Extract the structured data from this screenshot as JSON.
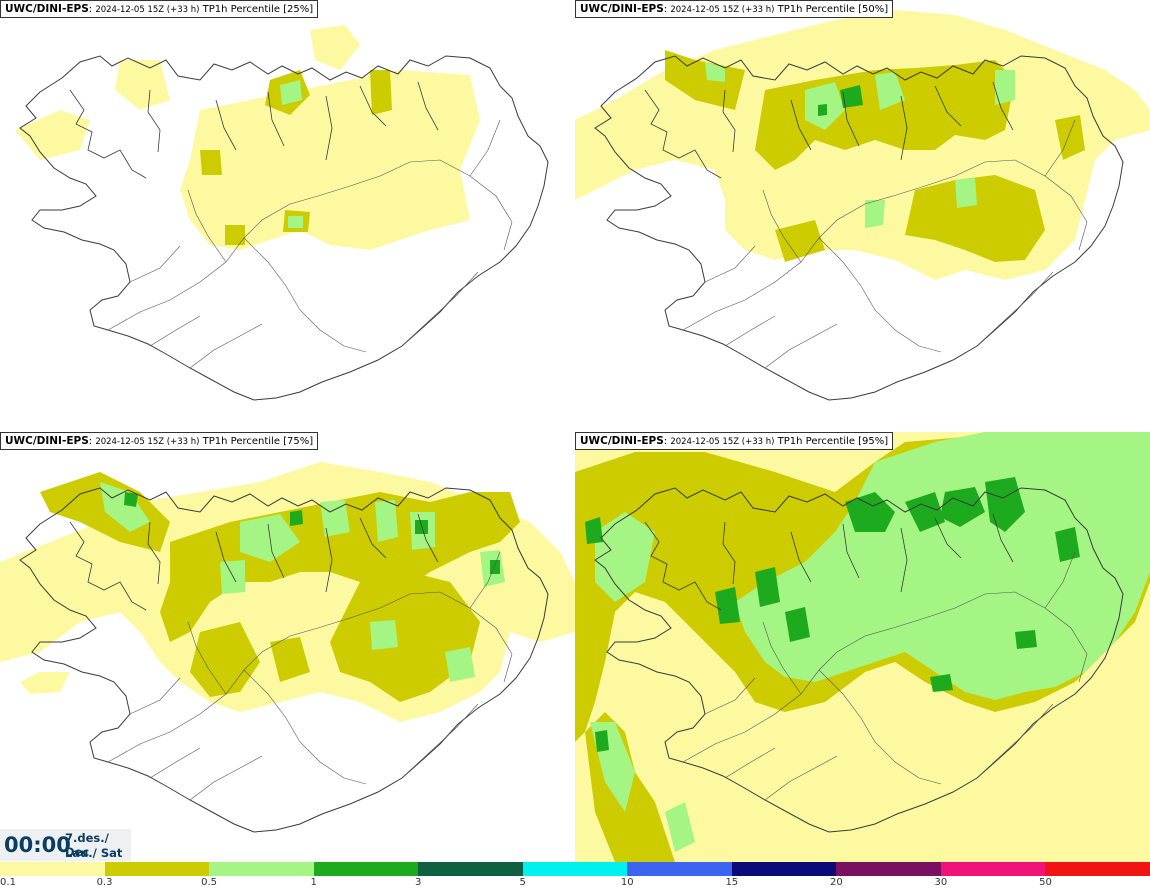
{
  "panels": [
    {
      "source": "UWC/DINI-EPS",
      "run": "2024-12-05 15Z (+33 h)",
      "product": "TP1h Percentile [25%]"
    },
    {
      "source": "UWC/DINI-EPS",
      "run": "2024-12-05 15Z (+33 h)",
      "product": "TP1h Percentile [50%]"
    },
    {
      "source": "UWC/DINI-EPS",
      "run": "2024-12-05 15Z (+33 h)",
      "product": "TP1h Percentile [75%]"
    },
    {
      "source": "UWC/DINI-EPS",
      "run": "2024-12-05 15Z (+33 h)",
      "product": "TP1h Percentile [95%]"
    }
  ],
  "valid_time": {
    "clock": "00:00",
    "date": "7.des./ Dec",
    "day": "Lau./ Sat"
  },
  "legend": {
    "colors": [
      "#fdf9a0",
      "#cccc00",
      "#a4f584",
      "#1eaa1e",
      "#0f6040",
      "#00f0f0",
      "#3c64f0",
      "#0a0a78",
      "#7a1060",
      "#f0147a",
      "#f01414"
    ],
    "ticks": [
      "0.1",
      "0.3",
      "0.5",
      "1",
      "3",
      "5",
      "10",
      "15",
      "20",
      "30",
      "50"
    ]
  },
  "fill_colors": {
    "light": "#fdf9a0",
    "mid": "#cccc00",
    "lime": "#a4f584",
    "green": "#1eaa1e"
  }
}
